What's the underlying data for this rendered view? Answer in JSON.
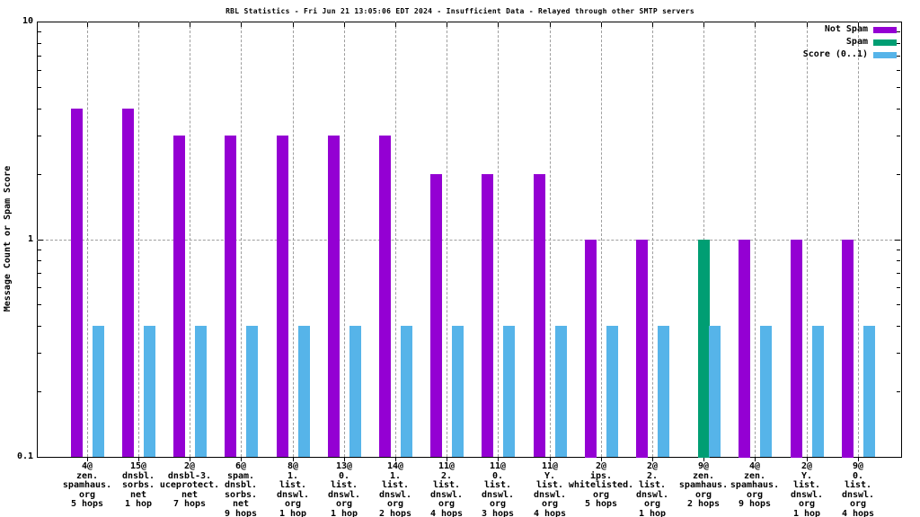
{
  "title": "RBL Statistics - Fri Jun 21 13:05:06 EDT 2024 - Insufficient Data - Relayed through other SMTP servers",
  "y_axis": {
    "label": "Message Count or Spam Score",
    "scale": "log",
    "min": 0.1,
    "max": 10,
    "tick_labels": [
      "10",
      "1",
      "0.1"
    ],
    "tick_values": [
      10,
      1,
      0.1
    ]
  },
  "legend": {
    "position": "top-right",
    "items": [
      {
        "label": "Not Spam",
        "color": "#9400D3"
      },
      {
        "label": "Spam",
        "color": "#009E73"
      },
      {
        "label": "Score (0..1)",
        "color": "#56B4E9"
      }
    ]
  },
  "colors": {
    "not_spam": "#9400D3",
    "spam": "#009E73",
    "score": "#56B4E9",
    "grid": "#9e9e9e",
    "frame": "#000000",
    "text": "#000000",
    "background": "#ffffff"
  },
  "chart_data": {
    "type": "bar",
    "title": "RBL Statistics - Fri Jun 21 13:05:06 EDT 2024 - Insufficient Data - Relayed through other SMTP servers",
    "ylabel": "Message Count or Spam Score",
    "yscale": "log",
    "ylim": [
      0.1,
      10
    ],
    "grid": {
      "vertical": "dashed line at every category tick",
      "horizontal_at": [
        1
      ]
    },
    "legend_position": "top-right",
    "categories": [
      [
        "4@",
        "zen.",
        "spamhaus.",
        "org",
        "5 hops"
      ],
      [
        "15@",
        "dnsbl.",
        "sorbs.",
        "net",
        "1 hop"
      ],
      [
        "2@",
        "dnsbl-3.",
        "uceprotect.",
        "net",
        "7 hops"
      ],
      [
        "6@",
        "spam.",
        "dnsbl.",
        "sorbs.",
        "net",
        "9 hops"
      ],
      [
        "8@",
        "1.",
        "list.",
        "dnswl.",
        "org",
        "1 hop"
      ],
      [
        "13@",
        "0.",
        "list.",
        "dnswl.",
        "org",
        "1 hop"
      ],
      [
        "14@",
        "1.",
        "list.",
        "dnswl.",
        "org",
        "2 hops"
      ],
      [
        "11@",
        "2.",
        "list.",
        "dnswl.",
        "org",
        "4 hops"
      ],
      [
        "11@",
        "0.",
        "list.",
        "dnswl.",
        "org",
        "3 hops"
      ],
      [
        "11@",
        "Y.",
        "list.",
        "dnswl.",
        "org",
        "4 hops"
      ],
      [
        "2@",
        "ips.",
        "whitelisted.",
        "org",
        "5 hops"
      ],
      [
        "2@",
        "2.",
        "list.",
        "dnswl.",
        "org",
        "1 hop"
      ],
      [
        "9@",
        "zen.",
        "spamhaus.",
        "org",
        "2 hops"
      ],
      [
        "4@",
        "zen.",
        "spamhaus.",
        "org",
        "9 hops"
      ],
      [
        "2@",
        "Y.",
        "list.",
        "dnswl.",
        "org",
        "1 hop"
      ],
      [
        "9@",
        "0.",
        "list.",
        "dnswl.",
        "org",
        "4 hops"
      ]
    ],
    "series": [
      {
        "name": "Not Spam",
        "color": "#9400D3",
        "values": [
          4,
          4,
          3,
          3,
          3,
          3,
          3,
          2,
          2,
          2,
          1,
          1,
          null,
          1,
          1,
          1
        ]
      },
      {
        "name": "Spam",
        "color": "#009E73",
        "values": [
          null,
          null,
          null,
          null,
          null,
          null,
          null,
          null,
          null,
          null,
          null,
          null,
          1,
          null,
          null,
          null
        ]
      },
      {
        "name": "Score (0..1)",
        "color": "#56B4E9",
        "values": [
          0.4,
          0.4,
          0.4,
          0.4,
          0.4,
          0.4,
          0.4,
          0.4,
          0.4,
          0.4,
          0.4,
          0.4,
          0.4,
          0.4,
          0.4,
          0.4
        ]
      }
    ]
  }
}
